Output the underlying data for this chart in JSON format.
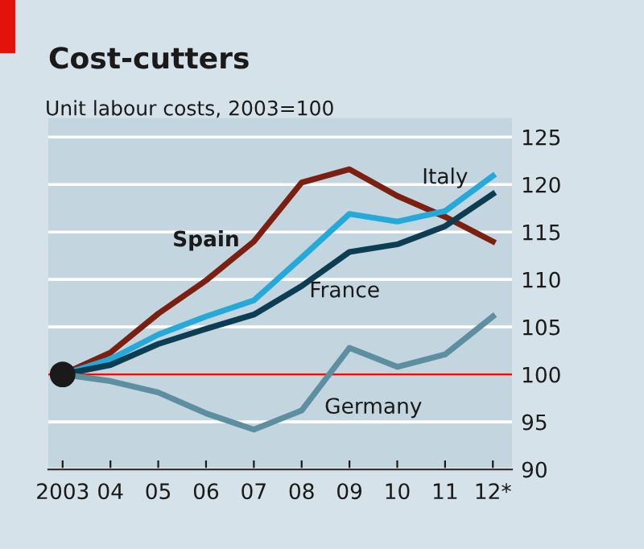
{
  "chart_data": {
    "type": "line",
    "title": "Cost-cutters",
    "subtitle": "Unit labour costs, 2003=100",
    "categories": [
      "2003",
      "04",
      "05",
      "06",
      "07",
      "08",
      "09",
      "10",
      "11",
      "12*"
    ],
    "series": [
      {
        "name": "Spain",
        "color": "#7b2011",
        "values": [
          100,
          102.3,
          106.4,
          109.9,
          114,
          120.2,
          121.6,
          118.8,
          116.6,
          114
        ]
      },
      {
        "name": "Italy",
        "color": "#25a9d8",
        "values": [
          100,
          101.6,
          104.2,
          106.1,
          107.8,
          112.3,
          116.9,
          116.1,
          117.2,
          120.9
        ]
      },
      {
        "name": "France",
        "color": "#0d3d52",
        "values": [
          100,
          101,
          103.2,
          104.8,
          106.3,
          109.3,
          112.9,
          113.7,
          115.6,
          119
        ]
      },
      {
        "name": "Germany",
        "color": "#5e8fa0",
        "values": [
          100,
          99.3,
          98.1,
          95.9,
          94.2,
          96.2,
          102.8,
          100.8,
          102.1,
          106.1
        ]
      }
    ],
    "ylim": [
      90,
      127
    ],
    "yticks": [
      90,
      95,
      100,
      105,
      110,
      115,
      120,
      125
    ],
    "grid": "y",
    "line_style": "solid",
    "ref_lines": [
      {
        "axis": "y",
        "value": 100,
        "color": "#e3120b"
      }
    ]
  }
}
